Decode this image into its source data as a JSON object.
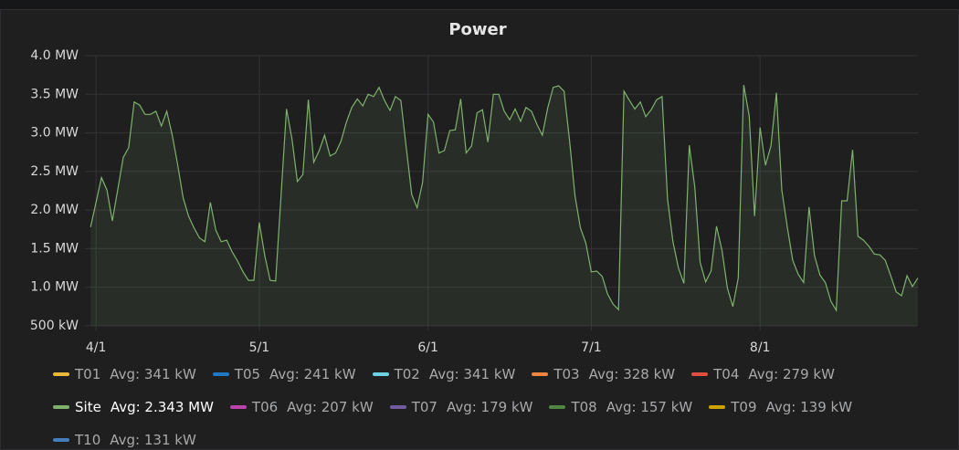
{
  "chart_data": {
    "type": "line",
    "title": "Power",
    "x": [
      -1,
      1,
      2,
      3,
      4,
      5,
      6,
      7,
      8,
      9,
      10,
      11,
      12,
      13,
      14,
      15,
      16,
      17,
      18,
      19,
      20,
      21,
      22,
      23,
      24,
      25,
      26,
      27,
      28,
      29,
      30,
      31,
      32,
      33,
      35,
      36,
      37,
      38,
      39,
      40,
      41,
      42,
      43,
      44,
      45,
      46,
      47,
      48,
      49,
      50,
      51,
      52,
      53,
      54,
      55,
      56,
      57,
      58,
      59,
      60,
      61,
      62,
      63,
      64,
      65,
      66,
      67,
      68,
      69,
      70,
      71,
      72,
      73,
      74,
      75,
      76,
      77,
      78,
      79,
      80,
      81,
      82,
      83,
      84,
      85,
      86,
      87,
      88,
      89,
      90,
      91,
      92,
      93,
      94,
      95,
      96,
      97,
      98,
      99,
      100,
      101,
      102,
      103,
      104,
      105,
      106,
      107,
      108,
      109,
      110,
      111,
      112,
      113,
      114,
      115,
      116,
      117,
      118,
      119,
      120,
      121,
      122,
      123,
      124,
      125,
      126,
      127,
      128,
      129,
      130,
      131,
      132,
      133,
      134,
      135,
      136,
      137,
      138,
      139,
      140,
      141,
      142,
      143,
      144,
      145,
      146,
      147,
      148,
      149,
      150,
      151
    ],
    "xlim": [
      -1.2,
      151
    ],
    "xticks": [
      {
        "value": 0,
        "label": "4/1"
      },
      {
        "value": 30,
        "label": "5/1"
      },
      {
        "value": 61,
        "label": "6/1"
      },
      {
        "value": 91,
        "label": "7/1"
      },
      {
        "value": 122,
        "label": "8/1"
      }
    ],
    "ylim": [
      0.5,
      4.0
    ],
    "yticks": [
      {
        "value": 0.5,
        "label": "500 kW"
      },
      {
        "value": 1.0,
        "label": "1.0 MW"
      },
      {
        "value": 1.5,
        "label": "1.5 MW"
      },
      {
        "value": 2.0,
        "label": "2.0 MW"
      },
      {
        "value": 2.5,
        "label": "2.5 MW"
      },
      {
        "value": 3.0,
        "label": "3.0 MW"
      },
      {
        "value": 3.5,
        "label": "3.5 MW"
      },
      {
        "value": 4.0,
        "label": "4.0 MW"
      }
    ],
    "grid": true,
    "series": [
      {
        "name": "T01",
        "color": "#eab839",
        "legend_value": "Avg: 341 kW"
      },
      {
        "name": "T05",
        "color": "#1f78c1",
        "legend_value": "Avg: 241 kW"
      },
      {
        "name": "T02",
        "color": "#6ed0e0",
        "legend_value": "Avg: 341 kW"
      },
      {
        "name": "T03",
        "color": "#ef843c",
        "legend_value": "Avg: 328 kW"
      },
      {
        "name": "T04",
        "color": "#e24d42",
        "legend_value": "Avg: 279 kW"
      },
      {
        "name": "Site",
        "color": "#7eb26d",
        "legend_value": "Avg: 2.343 MW",
        "values": [
          1.78,
          2.42,
          2.26,
          1.86,
          2.27,
          2.68,
          2.81,
          3.4,
          3.36,
          3.24,
          3.24,
          3.28,
          3.09,
          3.28,
          2.97,
          2.59,
          2.16,
          1.92,
          1.77,
          1.64,
          1.59,
          2.1,
          1.74,
          1.59,
          1.61,
          1.46,
          1.34,
          1.2,
          1.09,
          1.09,
          1.84,
          1.41,
          1.09,
          1.08,
          3.31,
          2.92,
          2.37,
          2.46,
          3.43,
          2.62,
          2.77,
          2.97,
          2.7,
          2.74,
          2.89,
          3.14,
          3.33,
          3.44,
          3.35,
          3.5,
          3.47,
          3.59,
          3.42,
          3.29,
          3.47,
          3.42,
          2.81,
          2.2,
          2.03,
          2.36,
          3.24,
          3.14,
          2.74,
          2.77,
          3.03,
          3.04,
          3.44,
          2.74,
          2.83,
          3.26,
          3.3,
          2.88,
          3.5,
          3.5,
          3.28,
          3.17,
          3.31,
          3.15,
          3.33,
          3.28,
          3.11,
          2.97,
          3.33,
          3.59,
          3.61,
          3.54,
          2.9,
          2.18,
          1.77,
          1.57,
          1.2,
          1.21,
          1.14,
          0.91,
          0.78,
          0.71,
          3.54,
          3.42,
          3.31,
          3.4,
          3.21,
          3.3,
          3.43,
          3.47,
          2.14,
          1.59,
          1.25,
          1.05,
          2.84,
          2.3,
          1.32,
          1.07,
          1.21,
          1.79,
          1.48,
          0.99,
          0.75,
          1.12,
          3.62,
          3.22,
          1.92,
          3.07,
          2.58,
          2.83,
          3.52,
          2.26,
          1.78,
          1.35,
          1.17,
          1.06,
          2.04,
          1.41,
          1.16,
          1.06,
          0.82,
          0.7,
          2.12,
          2.12,
          2.78,
          1.66,
          1.61,
          1.53,
          1.43,
          1.42,
          1.35,
          1.15,
          0.94,
          0.89,
          1.15,
          1.01,
          1.12
        ]
      },
      {
        "name": "T06",
        "color": "#ba43a9",
        "legend_value": "Avg: 207 kW"
      },
      {
        "name": "T07",
        "color": "#705da0",
        "legend_value": "Avg: 179 kW"
      },
      {
        "name": "T08",
        "color": "#508642",
        "legend_value": "Avg: 157 kW"
      },
      {
        "name": "T09",
        "color": "#cca300",
        "legend_value": "Avg: 139 kW"
      },
      {
        "name": "T10",
        "color": "#447ebc",
        "legend_value": "Avg: 131 kW"
      }
    ]
  }
}
